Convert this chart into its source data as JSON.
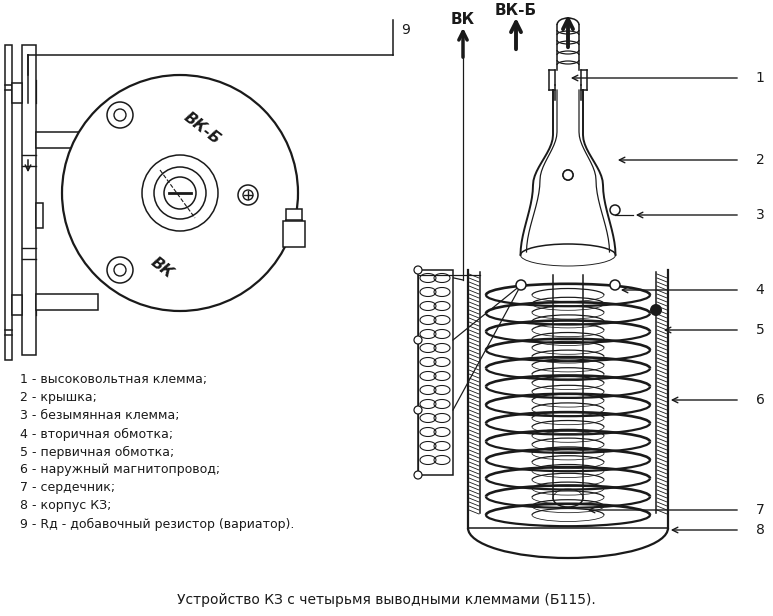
{
  "title": "Устройство КЗ с четырьмя выводными клеммами (Б115).",
  "background_color": "#ffffff",
  "legend_items": [
    "1 - высоковольтная клемма;",
    "2 - крышка;",
    "3 - безымянная клемма;",
    "4 - вторичная обмотка;",
    "5 - первичная обмотка;",
    "6 - наружный магнитопровод;",
    "7 - сердечник;",
    "8 - корпус КЗ;",
    "9 - Rд - добавочный резистор (вариатор)."
  ],
  "line_color": "#1a1a1a",
  "text_color": "#1a1a1a",
  "label_fontsize": 9,
  "title_fontsize": 10
}
